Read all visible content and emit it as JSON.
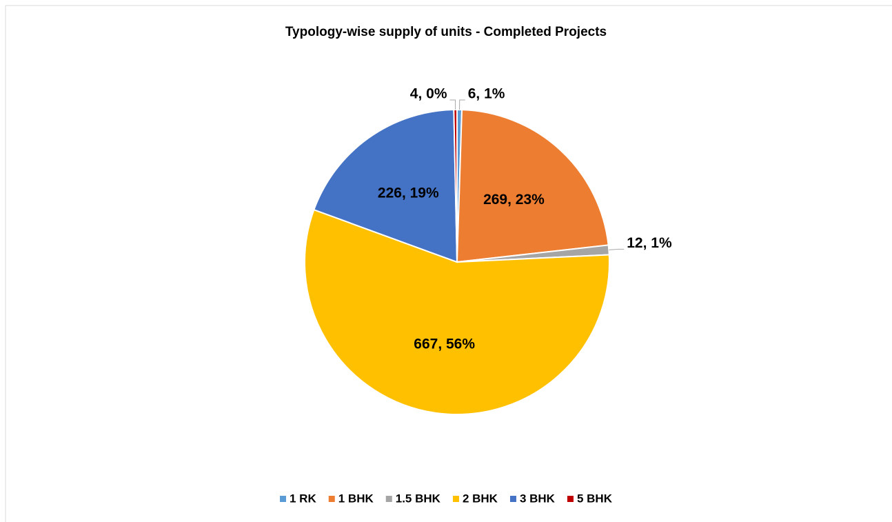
{
  "chart_data": {
    "type": "pie",
    "title": "Typology-wise supply of units - Completed Projects",
    "categories": [
      "1 RK",
      "1 BHK",
      "1.5 BHK",
      "2 BHK",
      "3 BHK",
      "5 BHK"
    ],
    "values": [
      6,
      269,
      12,
      667,
      226,
      4
    ],
    "value_labels": [
      "6, 1%",
      "269, 23%",
      "12, 1%",
      "667, 56%",
      "226, 19%",
      "4, 0%"
    ],
    "colors": [
      "#5B9BD5",
      "#ED7D31",
      "#A5A5A5",
      "#FFC000",
      "#4472C4",
      "#C00000"
    ],
    "legend": "bottom"
  }
}
